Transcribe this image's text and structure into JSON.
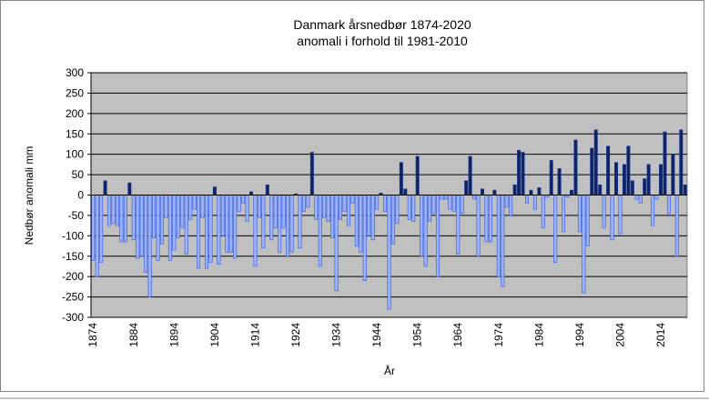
{
  "chart_data": {
    "type": "bar",
    "title": "Danmark årsnedbør 1874-2020",
    "subtitle": "anomali i forhold til 1981-2010",
    "y_label": "Nedbør anomali mm",
    "x_label": "År",
    "categories": [
      "1874",
      null,
      null,
      null,
      null,
      null,
      null,
      null,
      null,
      null,
      "1884",
      null,
      null,
      null,
      null,
      null,
      null,
      null,
      null,
      null,
      "1894",
      null,
      null,
      null,
      null,
      null,
      null,
      null,
      null,
      null,
      "1904",
      null,
      null,
      null,
      null,
      null,
      null,
      null,
      null,
      null,
      "1914",
      null,
      null,
      null,
      null,
      null,
      null,
      null,
      null,
      null,
      "1924",
      null,
      null,
      null,
      null,
      null,
      null,
      null,
      null,
      null,
      "1934",
      null,
      null,
      null,
      null,
      null,
      null,
      null,
      null,
      null,
      "1944",
      null,
      null,
      null,
      null,
      null,
      null,
      null,
      null,
      null,
      "1954",
      null,
      null,
      null,
      null,
      null,
      null,
      null,
      null,
      null,
      "1964",
      null,
      null,
      null,
      null,
      null,
      null,
      null,
      null,
      null,
      "1974",
      null,
      null,
      null,
      null,
      null,
      null,
      null,
      null,
      null,
      "1984",
      null,
      null,
      null,
      null,
      null,
      null,
      null,
      null,
      null,
      "1994",
      null,
      null,
      null,
      null,
      null,
      null,
      null,
      null,
      null,
      "2004",
      null,
      null,
      null,
      null,
      null,
      null,
      null,
      null,
      null,
      "2014",
      null,
      null,
      null,
      null,
      null,
      null
    ],
    "values": [
      -160,
      -200,
      -165,
      35,
      -75,
      -70,
      -75,
      -115,
      -115,
      30,
      -110,
      -155,
      -150,
      -190,
      -250,
      -105,
      -160,
      -120,
      -55,
      -160,
      -135,
      -105,
      -80,
      -145,
      -60,
      -35,
      -180,
      -55,
      -180,
      -165,
      20,
      -170,
      -100,
      -140,
      -140,
      -155,
      -40,
      -20,
      -65,
      8,
      -175,
      -55,
      -130,
      25,
      -110,
      -80,
      -140,
      -80,
      -150,
      -140,
      3,
      -130,
      -40,
      -30,
      105,
      -60,
      -175,
      -55,
      -65,
      -105,
      -235,
      -60,
      -40,
      -75,
      -20,
      -125,
      -140,
      -210,
      -100,
      -110,
      -35,
      5,
      -40,
      -280,
      -120,
      -70,
      80,
      15,
      -60,
      -65,
      95,
      -150,
      -175,
      -65,
      -45,
      -200,
      -10,
      -10,
      -35,
      -40,
      -145,
      -45,
      35,
      95,
      -10,
      -150,
      15,
      -115,
      -115,
      12,
      -200,
      -225,
      -30,
      -50,
      25,
      110,
      105,
      -20,
      12,
      -35,
      18,
      -80,
      -5,
      85,
      -165,
      65,
      -90,
      -5,
      12,
      135,
      -90,
      -240,
      -125,
      115,
      160,
      25,
      -80,
      120,
      -110,
      80,
      -95,
      75,
      120,
      35,
      -10,
      -20,
      40,
      75,
      -75,
      -10,
      75,
      155,
      -45,
      100,
      -150,
      160,
      25
    ],
    "colors": {
      "positive": "#0d2366",
      "negative": "#99b3ff"
    },
    "outline": {
      "positive": "#1a3a99",
      "negative": "#3355dd"
    },
    "ylim": [
      -300,
      300
    ],
    "yticks": [
      -300,
      -250,
      -200,
      -150,
      -100,
      -50,
      0,
      50,
      100,
      150,
      200,
      250,
      300
    ],
    "grid": true
  }
}
